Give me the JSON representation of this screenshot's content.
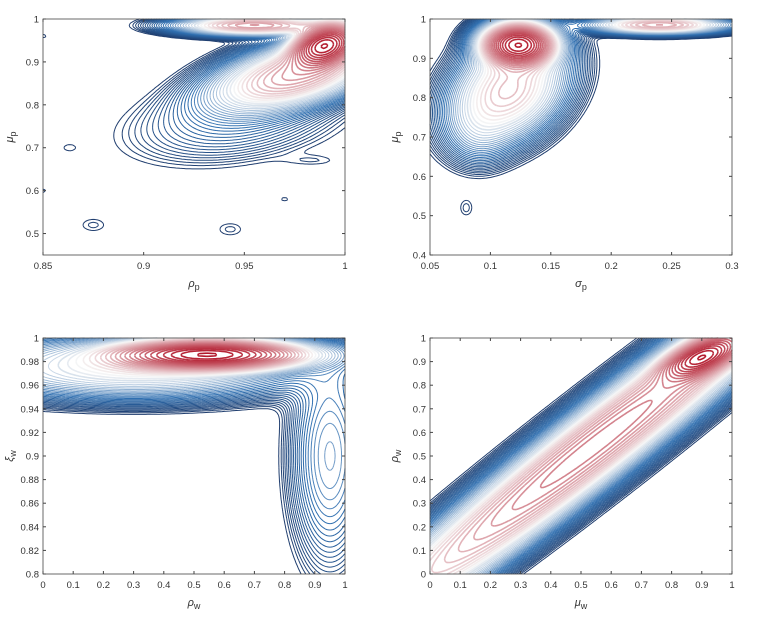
{
  "chart_data": [
    {
      "type": "contour",
      "xlabel": {
        "sym": "ρ",
        "sub": "p"
      },
      "ylabel": {
        "sym": "μ",
        "sub": "p"
      },
      "xlim": [
        0.85,
        1
      ],
      "ylim": [
        0.45,
        1
      ],
      "xticks": [
        "0.85",
        "0.9",
        "0.95",
        "1"
      ],
      "yticks": [
        "0.5",
        "0.6",
        "0.7",
        "0.8",
        "0.9",
        "1"
      ],
      "modes": [
        {
          "x": 0.99,
          "y": 0.94,
          "sx": 0.009,
          "sy": 0.028,
          "r": 0.3,
          "w": 1.0
        },
        {
          "x": 0.955,
          "y": 0.985,
          "sx": 0.02,
          "sy": 0.012,
          "r": 0,
          "w": 0.35
        },
        {
          "x": 0.975,
          "y": 0.87,
          "sx": 0.022,
          "sy": 0.045,
          "r": 0.5,
          "w": 0.35
        },
        {
          "x": 0.945,
          "y": 0.76,
          "sx": 0.03,
          "sy": 0.055,
          "r": 0.3,
          "w": 0.02
        },
        {
          "x": 0.875,
          "y": 0.52,
          "sx": 0.006,
          "sy": 0.015,
          "r": 0,
          "w": 0.004
        },
        {
          "x": 0.943,
          "y": 0.51,
          "sx": 0.006,
          "sy": 0.015,
          "r": 0,
          "w": 0.004
        },
        {
          "x": 0.97,
          "y": 0.58,
          "sx": 0.004,
          "sy": 0.01,
          "r": 0,
          "w": 0.003
        },
        {
          "x": 0.863,
          "y": 0.7,
          "sx": 0.004,
          "sy": 0.01,
          "r": 0,
          "w": 0.003
        },
        {
          "x": 0.985,
          "y": 0.67,
          "sx": 0.01,
          "sy": 0.01,
          "r": 0,
          "w": 0.003
        },
        {
          "x": 0.85,
          "y": 0.6,
          "sx": 0.003,
          "sy": 0.01,
          "r": 0,
          "w": 0.003
        },
        {
          "x": 0.85,
          "y": 0.96,
          "sx": 0.004,
          "sy": 0.01,
          "r": 0,
          "w": 0.003
        }
      ]
    },
    {
      "type": "contour",
      "xlabel": {
        "sym": "σ",
        "sub": "p"
      },
      "ylabel": {
        "sym": "μ",
        "sub": "p"
      },
      "xlim": [
        0.05,
        0.3
      ],
      "ylim": [
        0.4,
        1
      ],
      "xticks": [
        "0.05",
        "0.1",
        "0.15",
        "0.2",
        "0.25",
        "0.3"
      ],
      "yticks": [
        "0.4",
        "0.5",
        "0.6",
        "0.7",
        "0.8",
        "0.9",
        "1"
      ],
      "modes": [
        {
          "x": 0.123,
          "y": 0.935,
          "sx": 0.016,
          "sy": 0.03,
          "r": 0,
          "w": 1.0
        },
        {
          "x": 0.115,
          "y": 0.82,
          "sx": 0.025,
          "sy": 0.07,
          "r": 0.3,
          "w": 0.25
        },
        {
          "x": 0.09,
          "y": 0.72,
          "sx": 0.015,
          "sy": 0.05,
          "r": 0,
          "w": 0.03
        },
        {
          "x": 0.24,
          "y": 0.985,
          "sx": 0.03,
          "sy": 0.012,
          "r": 0,
          "w": 0.3
        },
        {
          "x": 0.08,
          "y": 0.52,
          "sx": 0.005,
          "sy": 0.02,
          "r": 0,
          "w": 0.004
        }
      ]
    },
    {
      "type": "contour",
      "xlabel": {
        "sym": "ρ",
        "sub": "w"
      },
      "ylabel": {
        "sym": "ξ",
        "sub": "w"
      },
      "xlim": [
        0,
        1
      ],
      "ylim": [
        0.8,
        1
      ],
      "xticks": [
        "0",
        "0.1",
        "0.2",
        "0.3",
        "0.4",
        "0.5",
        "0.6",
        "0.7",
        "0.8",
        "0.9",
        "1"
      ],
      "yticks": [
        "0.8",
        "0.82",
        "0.84",
        "0.86",
        "0.88",
        "0.9",
        "0.92",
        "0.94",
        "0.96",
        "0.98",
        "1"
      ],
      "modes": [
        {
          "x": 0.55,
          "y": 0.986,
          "sx": 0.17,
          "sy": 0.007,
          "r": 0,
          "w": 1.0
        },
        {
          "x": 0.3,
          "y": 0.975,
          "sx": 0.3,
          "sy": 0.014,
          "r": 0,
          "w": 0.15
        },
        {
          "x": 0.95,
          "y": 0.9,
          "sx": 0.07,
          "sy": 0.05,
          "r": 0,
          "w": 0.05
        }
      ]
    },
    {
      "type": "contour",
      "xlabel": {
        "sym": "μ",
        "sub": "w"
      },
      "ylabel": {
        "sym": "ρ",
        "sub": "w"
      },
      "xlim": [
        0,
        1
      ],
      "ylim": [
        0,
        1
      ],
      "xticks": [
        "0",
        "0.1",
        "0.2",
        "0.3",
        "0.4",
        "0.5",
        "0.6",
        "0.7",
        "0.8",
        "0.9",
        "1"
      ],
      "yticks": [
        "0",
        "0.1",
        "0.2",
        "0.3",
        "0.4",
        "0.5",
        "0.6",
        "0.7",
        "0.8",
        "0.9",
        "1"
      ],
      "modes": [
        {
          "x": 0.55,
          "y": 0.55,
          "sx": 0.45,
          "sy": 0.45,
          "r": 0.975,
          "w": 0.6
        },
        {
          "x": 0.9,
          "y": 0.92,
          "sx": 0.07,
          "sy": 0.05,
          "r": 0.6,
          "w": 1.0
        }
      ]
    }
  ],
  "colors": {
    "low": "#1f3d6e",
    "mid_blue": "#2f6fb0",
    "white": "#f7f7f7",
    "high": "#b2182b"
  }
}
